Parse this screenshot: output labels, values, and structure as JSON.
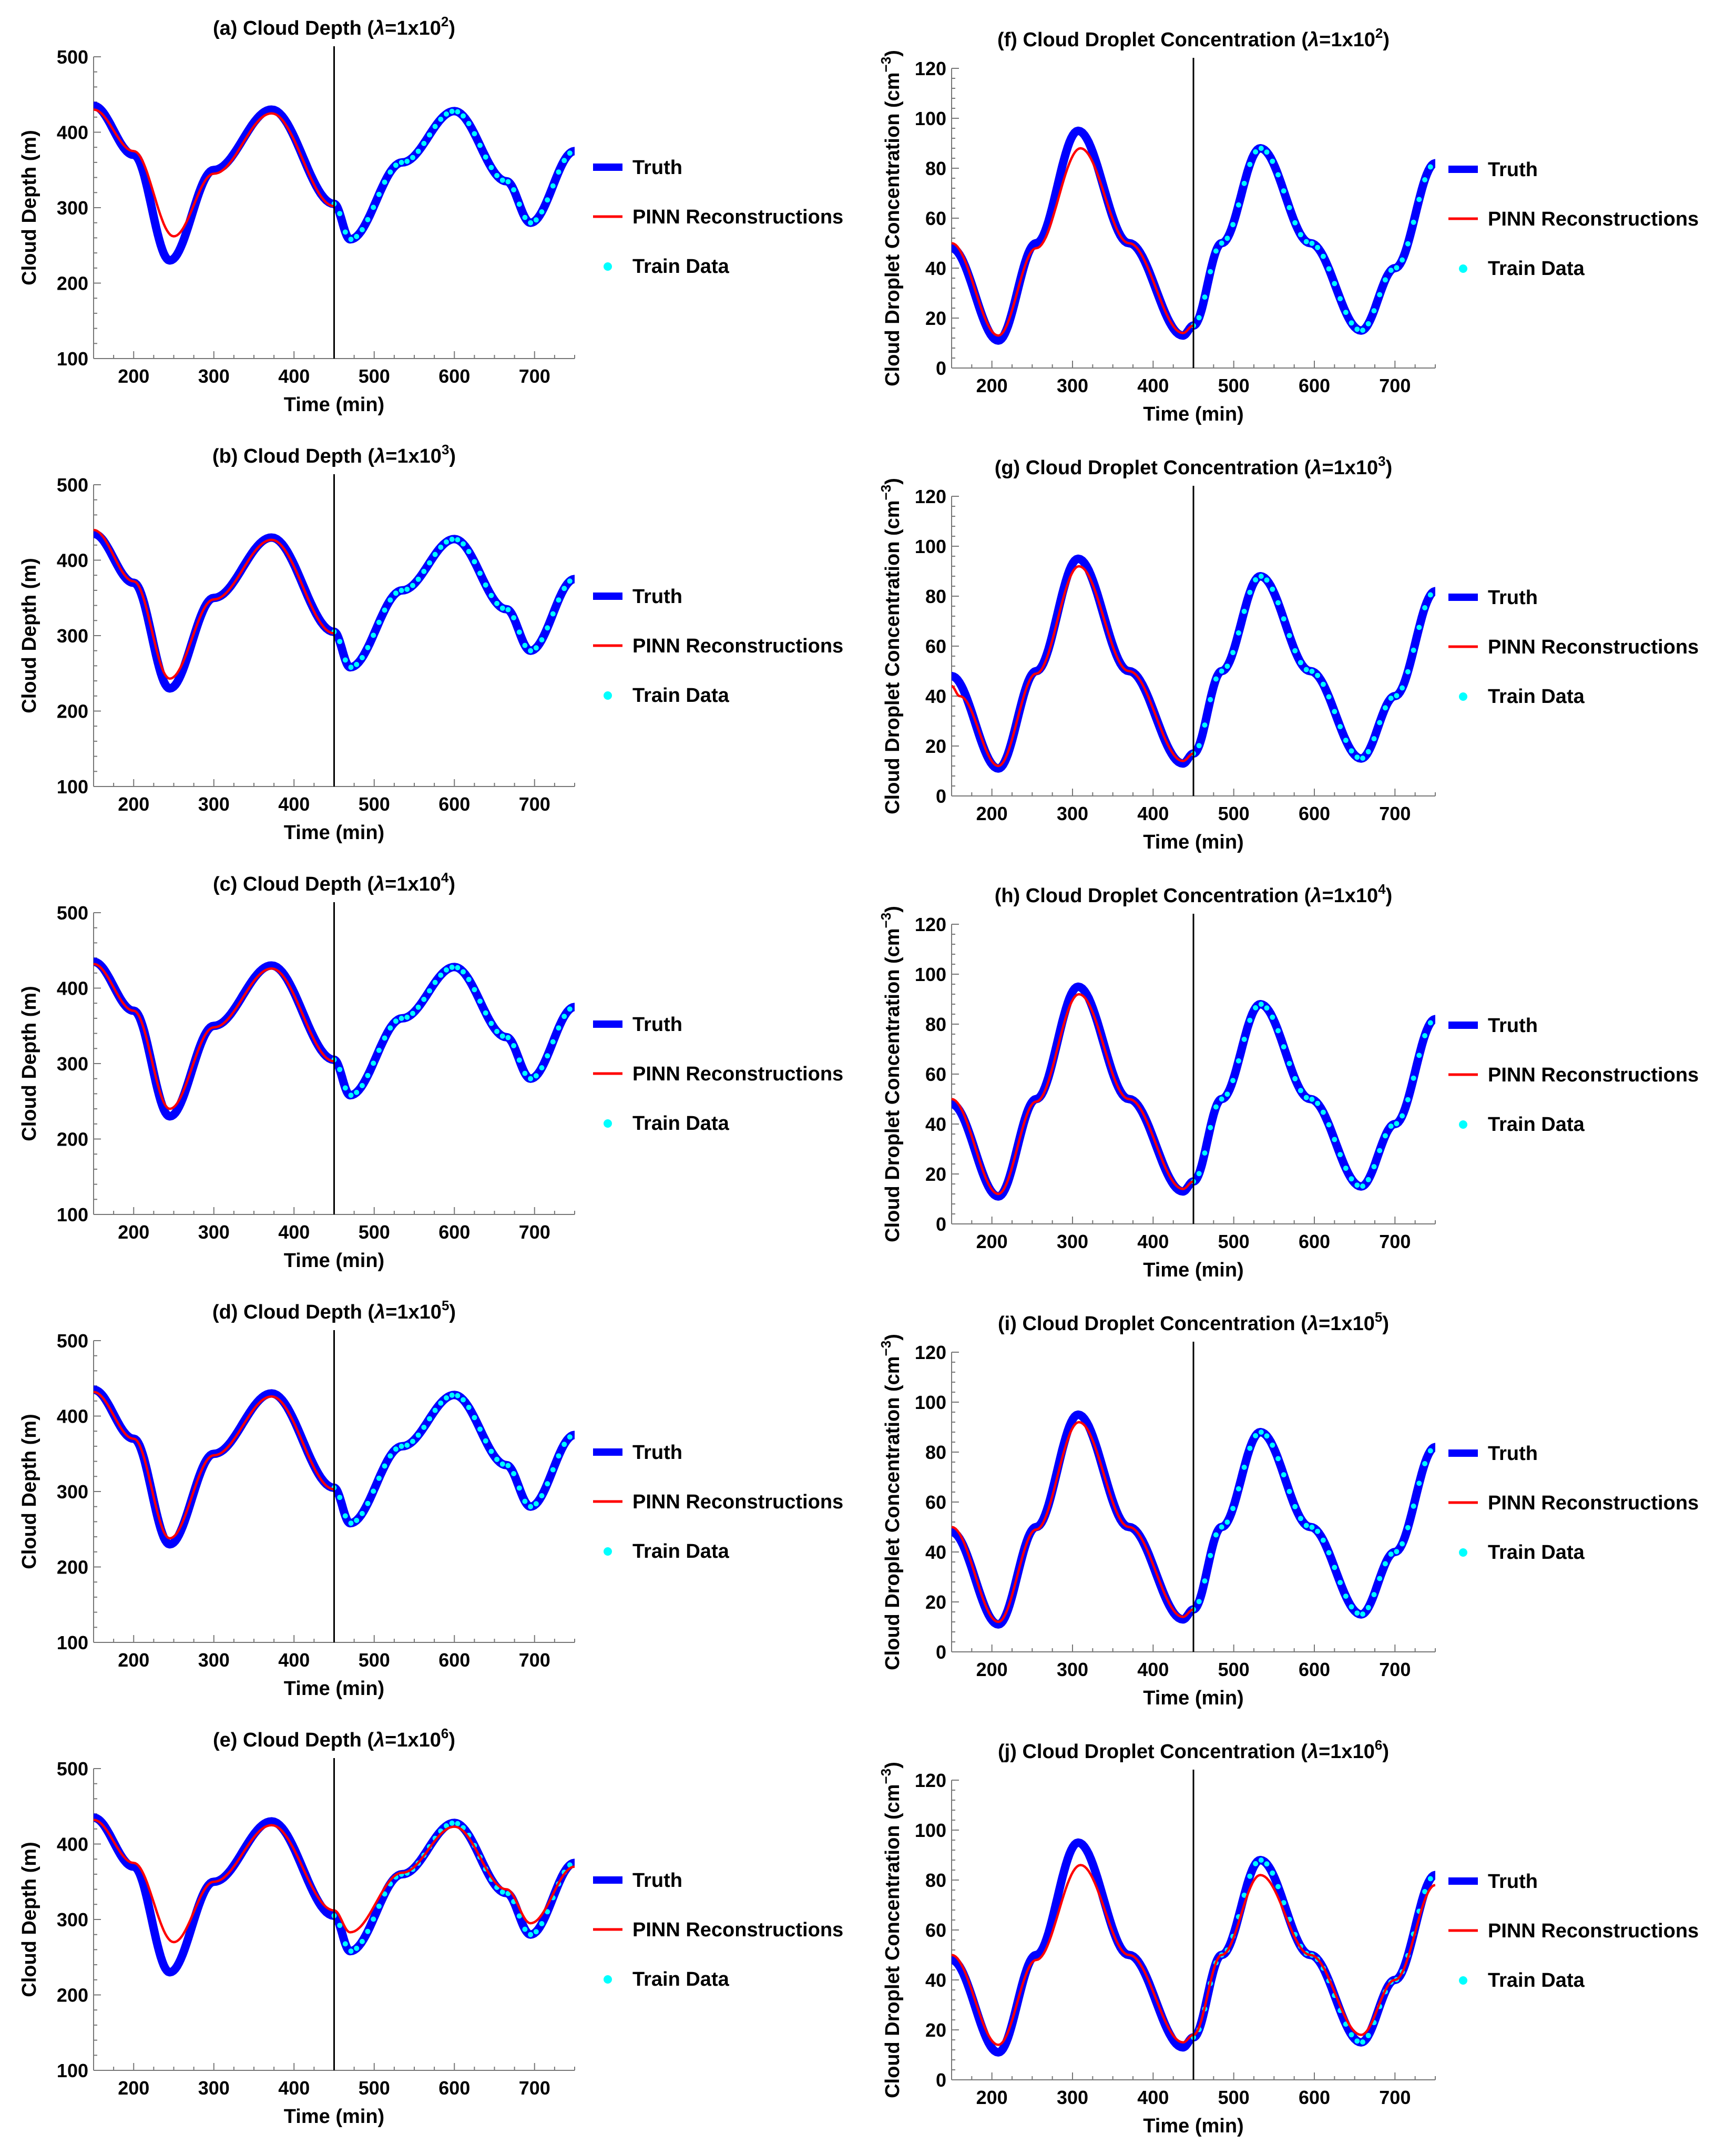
{
  "colors": {
    "truth": "#0000ff",
    "pinn": "#ff0000",
    "train": "#00ffff",
    "axis": "#000000"
  },
  "legend": {
    "truth": "Truth",
    "pinn": "PINN Reconstructions",
    "train": "Train Data"
  },
  "chart_data": [
    {
      "id": "a",
      "type": "line",
      "panel_label": "(a) Cloud Depth (",
      "lambda_mantissa": "=1x10",
      "lambda_exp": "2",
      "title_close": ")",
      "xlabel": "Time (min)",
      "ylabel": "Cloud Depth (m)",
      "xlim": [
        150,
        750
      ],
      "ylim": [
        100,
        500
      ],
      "xticks": [
        200,
        300,
        400,
        500,
        600,
        700
      ],
      "yticks": [
        100,
        200,
        300,
        400,
        500
      ],
      "train_start": 450,
      "series": [
        {
          "name": "Truth",
          "x": [
            150,
            200,
            245,
            300,
            372,
            450,
            470,
            535,
            600,
            665,
            695,
            750
          ],
          "values": [
            435,
            370,
            230,
            350,
            430,
            305,
            258,
            360,
            428,
            335,
            280,
            375
          ]
        },
        {
          "name": "PINN Reconstructions",
          "x": [
            150,
            200,
            250,
            300,
            372,
            450
          ],
          "values": [
            430,
            375,
            262,
            345,
            425,
            302
          ]
        },
        {
          "name": "Train Data",
          "x": [
            450,
            470,
            535,
            600,
            665,
            695,
            750
          ],
          "values": [
            305,
            258,
            360,
            428,
            335,
            280,
            375
          ]
        }
      ]
    },
    {
      "id": "b",
      "type": "line",
      "panel_label": "(b) Cloud Depth (",
      "lambda_mantissa": "=1x10",
      "lambda_exp": "3",
      "title_close": ")",
      "xlabel": "Time (min)",
      "ylabel": "Cloud Depth (m)",
      "xlim": [
        150,
        750
      ],
      "ylim": [
        100,
        500
      ],
      "xticks": [
        200,
        300,
        400,
        500,
        600,
        700
      ],
      "yticks": [
        100,
        200,
        300,
        400,
        500
      ],
      "train_start": 450,
      "series": [
        {
          "name": "Truth",
          "x": [
            150,
            200,
            245,
            300,
            372,
            450,
            470,
            535,
            600,
            665,
            695,
            750
          ],
          "values": [
            435,
            370,
            230,
            350,
            430,
            305,
            258,
            360,
            428,
            335,
            280,
            375
          ]
        },
        {
          "name": "PINN Reconstructions",
          "x": [
            150,
            200,
            245,
            300,
            372,
            450
          ],
          "values": [
            440,
            372,
            243,
            348,
            427,
            303
          ]
        },
        {
          "name": "Train Data",
          "x": [
            450,
            470,
            535,
            600,
            665,
            695,
            750
          ],
          "values": [
            305,
            258,
            360,
            428,
            335,
            280,
            375
          ]
        }
      ]
    },
    {
      "id": "c",
      "type": "line",
      "panel_label": "(c) Cloud Depth (",
      "lambda_mantissa": "=1x10",
      "lambda_exp": "4",
      "title_close": ")",
      "xlabel": "Time (min)",
      "ylabel": "Cloud Depth (m)",
      "xlim": [
        150,
        750
      ],
      "ylim": [
        100,
        500
      ],
      "xticks": [
        200,
        300,
        400,
        500,
        600,
        700
      ],
      "yticks": [
        100,
        200,
        300,
        400,
        500
      ],
      "train_start": 450,
      "series": [
        {
          "name": "Truth",
          "x": [
            150,
            200,
            245,
            300,
            372,
            450,
            470,
            535,
            600,
            665,
            695,
            750
          ],
          "values": [
            435,
            370,
            230,
            350,
            430,
            305,
            258,
            360,
            428,
            335,
            280,
            375
          ]
        },
        {
          "name": "PINN Reconstructions",
          "x": [
            150,
            200,
            245,
            300,
            372,
            450
          ],
          "values": [
            432,
            370,
            240,
            348,
            426,
            303
          ]
        },
        {
          "name": "Train Data",
          "x": [
            450,
            470,
            535,
            600,
            665,
            695,
            750
          ],
          "values": [
            305,
            258,
            360,
            428,
            335,
            280,
            375
          ]
        }
      ]
    },
    {
      "id": "d",
      "type": "line",
      "panel_label": "(d) Cloud Depth (",
      "lambda_mantissa": "=1x10",
      "lambda_exp": "5",
      "title_close": ")",
      "xlabel": "Time (min)",
      "ylabel": "Cloud Depth (m)",
      "xlim": [
        150,
        750
      ],
      "ylim": [
        100,
        500
      ],
      "xticks": [
        200,
        300,
        400,
        500,
        600,
        700
      ],
      "yticks": [
        100,
        200,
        300,
        400,
        500
      ],
      "train_start": 450,
      "series": [
        {
          "name": "Truth",
          "x": [
            150,
            200,
            245,
            300,
            372,
            450,
            470,
            535,
            600,
            665,
            695,
            750
          ],
          "values": [
            435,
            370,
            230,
            350,
            430,
            305,
            258,
            360,
            428,
            335,
            280,
            375
          ]
        },
        {
          "name": "PINN Reconstructions",
          "x": [
            150,
            200,
            245,
            300,
            372,
            450
          ],
          "values": [
            432,
            370,
            238,
            348,
            426,
            303
          ]
        },
        {
          "name": "Train Data",
          "x": [
            450,
            470,
            535,
            600,
            665,
            695,
            750
          ],
          "values": [
            305,
            258,
            360,
            428,
            335,
            280,
            375
          ]
        }
      ]
    },
    {
      "id": "e",
      "type": "line",
      "panel_label": "(e) Cloud Depth (",
      "lambda_mantissa": "=1x10",
      "lambda_exp": "6",
      "title_close": ")",
      "xlabel": "Time (min)",
      "ylabel": "Cloud Depth (m)",
      "xlim": [
        150,
        750
      ],
      "ylim": [
        100,
        500
      ],
      "xticks": [
        200,
        300,
        400,
        500,
        600,
        700
      ],
      "yticks": [
        100,
        200,
        300,
        400,
        500
      ],
      "train_start": 450,
      "series": [
        {
          "name": "Truth",
          "x": [
            150,
            200,
            245,
            300,
            372,
            450,
            470,
            535,
            600,
            665,
            695,
            750
          ],
          "values": [
            435,
            370,
            230,
            350,
            430,
            305,
            258,
            360,
            428,
            335,
            280,
            375
          ]
        },
        {
          "name": "PINN Reconstructions",
          "x": [
            150,
            200,
            250,
            300,
            372,
            450,
            470,
            535,
            600,
            665,
            695,
            750
          ],
          "values": [
            432,
            375,
            270,
            350,
            425,
            312,
            283,
            362,
            423,
            340,
            295,
            370
          ]
        },
        {
          "name": "Train Data",
          "x": [
            450,
            470,
            535,
            600,
            665,
            695,
            750
          ],
          "values": [
            305,
            258,
            360,
            428,
            335,
            280,
            375
          ]
        }
      ]
    },
    {
      "id": "f",
      "type": "line",
      "panel_label": "(f) Cloud Droplet Concentration (",
      "lambda_mantissa": "=1x10",
      "lambda_exp": "2",
      "title_close": ")",
      "xlabel": "Time (min)",
      "ylabel": "Cloud Droplet Concentration (cm",
      "ylabel_exp": "−3",
      "ylabel_close": ")",
      "xlim": [
        150,
        750
      ],
      "ylim": [
        0,
        120
      ],
      "xticks": [
        200,
        300,
        400,
        500,
        600,
        700
      ],
      "yticks": [
        0,
        20,
        40,
        60,
        80,
        100,
        120
      ],
      "train_start": 450,
      "series": [
        {
          "name": "Truth",
          "x": [
            150,
            208,
            255,
            307,
            370,
            437,
            450,
            485,
            533,
            595,
            658,
            700,
            750
          ],
          "values": [
            48,
            11,
            50,
            95,
            50,
            13,
            17,
            50,
            88,
            50,
            15,
            40,
            82
          ]
        },
        {
          "name": "PINN Reconstructions",
          "x": [
            150,
            208,
            255,
            310,
            370,
            437,
            450
          ],
          "values": [
            50,
            13,
            48,
            88,
            50,
            14,
            17
          ]
        },
        {
          "name": "Train Data",
          "x": [
            450,
            485,
            533,
            595,
            658,
            700,
            750
          ],
          "values": [
            17,
            50,
            88,
            50,
            15,
            40,
            82
          ]
        }
      ]
    },
    {
      "id": "g",
      "type": "line",
      "panel_label": "(g) Cloud Droplet Concentration (",
      "lambda_mantissa": "=1x10",
      "lambda_exp": "3",
      "title_close": ")",
      "xlabel": "Time (min)",
      "ylabel": "Cloud Droplet Concentration (cm",
      "ylabel_exp": "−3",
      "ylabel_close": ")",
      "xlim": [
        150,
        750
      ],
      "ylim": [
        0,
        120
      ],
      "xticks": [
        200,
        300,
        400,
        500,
        600,
        700
      ],
      "yticks": [
        0,
        20,
        40,
        60,
        80,
        100,
        120
      ],
      "train_start": 450,
      "series": [
        {
          "name": "Truth",
          "x": [
            150,
            208,
            255,
            307,
            370,
            437,
            450,
            485,
            533,
            595,
            658,
            700,
            750
          ],
          "values": [
            48,
            11,
            50,
            95,
            50,
            13,
            17,
            50,
            88,
            50,
            15,
            40,
            82
          ]
        },
        {
          "name": "PINN Reconstructions",
          "x": [
            150,
            160,
            208,
            255,
            308,
            370,
            437,
            450
          ],
          "values": [
            44,
            40,
            12,
            49,
            92,
            50,
            14,
            17
          ]
        },
        {
          "name": "Train Data",
          "x": [
            450,
            485,
            533,
            595,
            658,
            700,
            750
          ],
          "values": [
            17,
            50,
            88,
            50,
            15,
            40,
            82
          ]
        }
      ]
    },
    {
      "id": "h",
      "type": "line",
      "panel_label": "(h) Cloud Droplet Concentration (",
      "lambda_mantissa": "=1x10",
      "lambda_exp": "4",
      "title_close": ")",
      "xlabel": "Time (min)",
      "ylabel": "Cloud Droplet Concentration (cm",
      "ylabel_exp": "−3",
      "ylabel_close": ")",
      "xlim": [
        150,
        750
      ],
      "ylim": [
        0,
        120
      ],
      "xticks": [
        200,
        300,
        400,
        500,
        600,
        700
      ],
      "yticks": [
        0,
        20,
        40,
        60,
        80,
        100,
        120
      ],
      "train_start": 450,
      "series": [
        {
          "name": "Truth",
          "x": [
            150,
            208,
            255,
            307,
            370,
            437,
            450,
            485,
            533,
            595,
            658,
            700,
            750
          ],
          "values": [
            48,
            11,
            50,
            95,
            50,
            13,
            17,
            50,
            88,
            50,
            15,
            40,
            82
          ]
        },
        {
          "name": "PINN Reconstructions",
          "x": [
            150,
            208,
            255,
            308,
            370,
            437,
            450
          ],
          "values": [
            50,
            12,
            49,
            92,
            50,
            14,
            17
          ]
        },
        {
          "name": "Train Data",
          "x": [
            450,
            485,
            533,
            595,
            658,
            700,
            750
          ],
          "values": [
            17,
            50,
            88,
            50,
            15,
            40,
            82
          ]
        }
      ]
    },
    {
      "id": "i",
      "type": "line",
      "panel_label": "(i) Cloud Droplet Concentration (",
      "lambda_mantissa": "=1x10",
      "lambda_exp": "5",
      "title_close": ")",
      "xlabel": "Time (min)",
      "ylabel": "Cloud Droplet Concentration (cm",
      "ylabel_exp": "−3",
      "ylabel_close": ")",
      "xlim": [
        150,
        750
      ],
      "ylim": [
        0,
        120
      ],
      "xticks": [
        200,
        300,
        400,
        500,
        600,
        700
      ],
      "yticks": [
        0,
        20,
        40,
        60,
        80,
        100,
        120
      ],
      "train_start": 450,
      "series": [
        {
          "name": "Truth",
          "x": [
            150,
            208,
            255,
            307,
            370,
            437,
            450,
            485,
            533,
            595,
            658,
            700,
            750
          ],
          "values": [
            48,
            11,
            50,
            95,
            50,
            13,
            17,
            50,
            88,
            50,
            15,
            40,
            82
          ]
        },
        {
          "name": "PINN Reconstructions",
          "x": [
            150,
            208,
            255,
            308,
            370,
            437,
            450
          ],
          "values": [
            50,
            12,
            49,
            92,
            50,
            14,
            17
          ]
        },
        {
          "name": "Train Data",
          "x": [
            450,
            485,
            533,
            595,
            658,
            700,
            750
          ],
          "values": [
            17,
            50,
            88,
            50,
            15,
            40,
            82
          ]
        }
      ]
    },
    {
      "id": "j",
      "type": "line",
      "panel_label": "(j) Cloud Droplet Concentration (",
      "lambda_mantissa": "=1x10",
      "lambda_exp": "6",
      "title_close": ")",
      "xlabel": "Time (min)",
      "ylabel": "Cloud Droplet Concentration (cm",
      "ylabel_exp": "−3",
      "ylabel_close": ")",
      "xlim": [
        150,
        750
      ],
      "ylim": [
        0,
        120
      ],
      "xticks": [
        200,
        300,
        400,
        500,
        600,
        700
      ],
      "yticks": [
        0,
        20,
        40,
        60,
        80,
        100,
        120
      ],
      "train_start": 450,
      "series": [
        {
          "name": "Truth",
          "x": [
            150,
            208,
            255,
            307,
            370,
            437,
            450,
            485,
            533,
            595,
            658,
            700,
            750
          ],
          "values": [
            48,
            11,
            50,
            95,
            50,
            13,
            17,
            50,
            88,
            50,
            15,
            40,
            82
          ]
        },
        {
          "name": "PINN Reconstructions",
          "x": [
            150,
            208,
            255,
            310,
            370,
            437,
            450,
            485,
            533,
            595,
            658,
            700,
            750
          ],
          "values": [
            50,
            14,
            48,
            86,
            50,
            15,
            18,
            50,
            82,
            50,
            18,
            40,
            78
          ]
        },
        {
          "name": "Train Data",
          "x": [
            450,
            485,
            533,
            595,
            658,
            700,
            750
          ],
          "values": [
            17,
            50,
            88,
            50,
            15,
            40,
            82
          ]
        }
      ]
    }
  ]
}
